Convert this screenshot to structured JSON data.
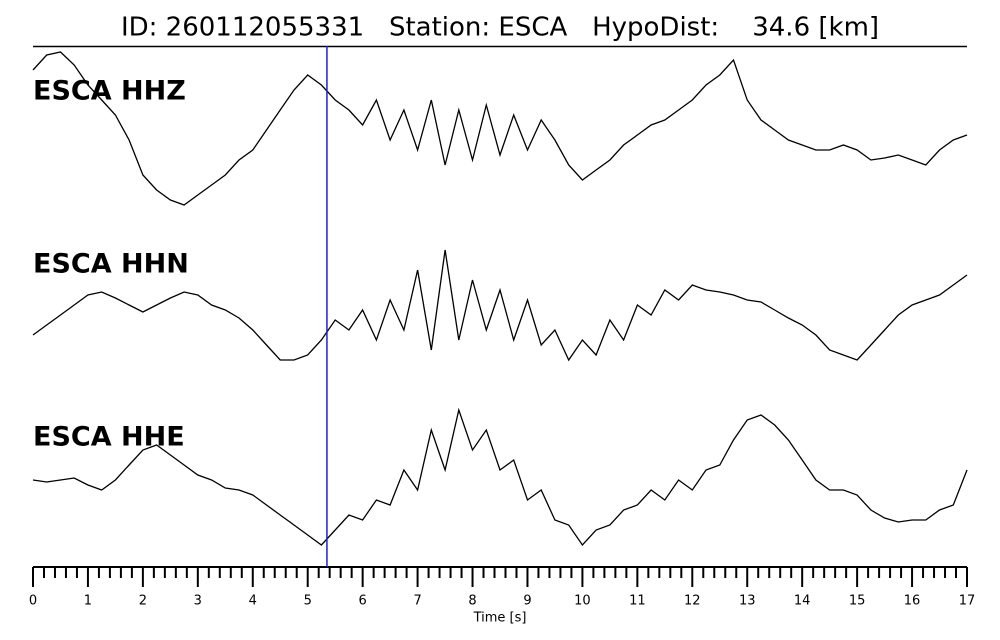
{
  "chart_data": {
    "type": "line",
    "title": "ID: 260112055331   Station: ESCA   HypoDist:    34.6 [km]",
    "xlabel": "Time [s]",
    "xlim": [
      0,
      17
    ],
    "xticks": [
      0,
      1,
      2,
      3,
      4,
      5,
      6,
      7,
      8,
      9,
      10,
      11,
      12,
      13,
      14,
      15,
      16,
      17
    ],
    "xminorticks": [
      0.2,
      0.4,
      0.6,
      0.8,
      1.2,
      1.4,
      1.6,
      1.8,
      2.2,
      2.4,
      2.6,
      2.8,
      3.2,
      3.4,
      3.6,
      3.8,
      4.2,
      4.4,
      4.6,
      4.8,
      5.2,
      5.4,
      5.6,
      5.8,
      6.2,
      6.4,
      6.6,
      6.8,
      7.2,
      7.4,
      7.6,
      7.8,
      8.2,
      8.4,
      8.6,
      8.8,
      9.2,
      9.4,
      9.6,
      9.8,
      10.2,
      10.4,
      10.6,
      10.8,
      11.2,
      11.4,
      11.6,
      11.8,
      12.2,
      12.4,
      12.6,
      12.8,
      13.2,
      13.4,
      13.6,
      13.8,
      14.2,
      14.4,
      14.6,
      14.8,
      15.2,
      15.4,
      15.6,
      15.8,
      16.2,
      16.4,
      16.6,
      16.8
    ],
    "ylim": [
      -85,
      85
    ],
    "vline_x": 5.35,
    "vline_color": "#1f1fd6",
    "label_color": "#4c9a00",
    "x": [
      0,
      0.25,
      0.5,
      0.75,
      1,
      1.25,
      1.5,
      1.75,
      2,
      2.25,
      2.5,
      2.75,
      3,
      3.25,
      3.5,
      3.75,
      4,
      4.25,
      4.5,
      4.75,
      5,
      5.25,
      5.5,
      5.75,
      6,
      6.25,
      6.5,
      6.75,
      7,
      7.25,
      7.5,
      7.75,
      8,
      8.25,
      8.5,
      8.75,
      9,
      9.25,
      9.5,
      9.75,
      10,
      10.25,
      10.5,
      10.75,
      11,
      11.25,
      11.5,
      11.75,
      12,
      12.25,
      12.5,
      12.75,
      13,
      13.25,
      13.5,
      13.75,
      14,
      14.25,
      14.5,
      14.75,
      15,
      15.25,
      15.5,
      15.75,
      16,
      16.25,
      16.5,
      16.75,
      17
    ],
    "series": [
      {
        "name": "ESCA HHZ",
        "color": "#000000",
        "values": [
          63,
          78,
          81,
          68,
          48,
          33,
          18,
          -7,
          -42,
          -57,
          -67,
          -72,
          -62,
          -52,
          -42,
          -27,
          -17,
          3,
          23,
          43,
          58,
          48,
          33,
          23,
          8,
          33,
          -7,
          23,
          -17,
          33,
          -32,
          23,
          -27,
          28,
          -22,
          18,
          -17,
          13,
          -7,
          -32,
          -47,
          -37,
          -27,
          -12,
          -2,
          8,
          13,
          23,
          33,
          48,
          58,
          73,
          33,
          13,
          3,
          -7,
          -12,
          -17,
          -17,
          -12,
          -17,
          -27,
          -25,
          -22,
          -27,
          -32,
          -17,
          -7,
          -2
        ]
      },
      {
        "name": "ESCA HHN",
        "color": "#000000",
        "values": [
          -29,
          -19,
          -9,
          1,
          11,
          14,
          8,
          1,
          -6,
          1,
          8,
          14,
          11,
          1,
          -4,
          -12,
          -24,
          -39,
          -54,
          -54,
          -49,
          -34,
          -14,
          -24,
          -4,
          -34,
          6,
          -24,
          36,
          -44,
          56,
          -34,
          26,
          -24,
          16,
          -34,
          6,
          -39,
          -24,
          -54,
          -34,
          -49,
          -14,
          -34,
          1,
          -9,
          16,
          6,
          21,
          16,
          14,
          11,
          6,
          4,
          -4,
          -12,
          -19,
          -29,
          -44,
          -49,
          -54,
          -39,
          -24,
          -9,
          1,
          6,
          11,
          21,
          31
        ]
      },
      {
        "name": "ESCA HHE",
        "color": "#000000",
        "values": [
          -1,
          -3,
          -1,
          1,
          -6,
          -11,
          -1,
          14,
          29,
          34,
          24,
          14,
          4,
          -1,
          -9,
          -11,
          -16,
          -26,
          -36,
          -46,
          -56,
          -66,
          -51,
          -36,
          -41,
          -21,
          -26,
          9,
          -11,
          49,
          9,
          69,
          29,
          49,
          9,
          19,
          -21,
          -11,
          -41,
          -46,
          -66,
          -51,
          -46,
          -31,
          -26,
          -11,
          -21,
          -1,
          -11,
          9,
          14,
          39,
          59,
          64,
          54,
          39,
          19,
          -1,
          -11,
          -11,
          -16,
          -31,
          -39,
          -43,
          -41,
          -41,
          -31,
          -26,
          9
        ]
      }
    ]
  }
}
